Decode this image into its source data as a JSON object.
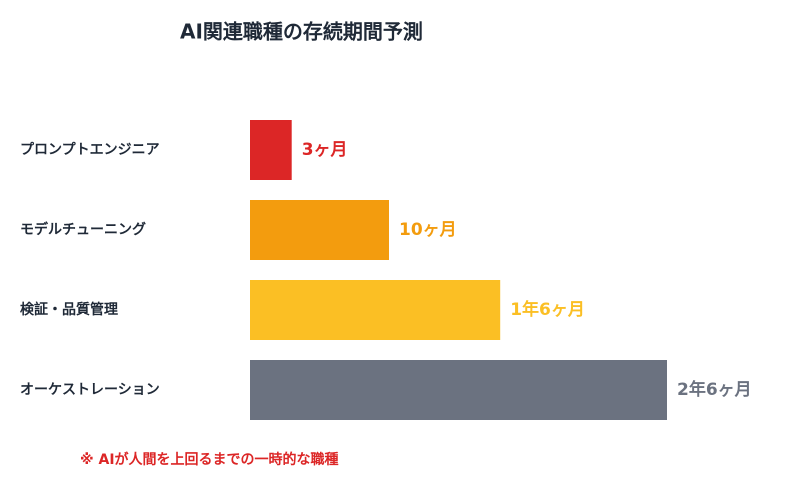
{
  "chart_data": {
    "type": "bar",
    "title": "AI関連職種の存続期間予測",
    "categories": [
      "プロンプトエンジニア",
      "モデルチューニング",
      "検証・品質管理",
      "オーケストレーション"
    ],
    "values": [
      3,
      10,
      18,
      30
    ],
    "value_labels": [
      "3ヶ月",
      "10ヶ月",
      "1年6ヶ月",
      "2年6ヶ月"
    ],
    "colors": [
      "#dc2626",
      "#f39c0e",
      "#fbbf24",
      "#6b7280"
    ],
    "note": "※ AIが人間を上回るまでの一時的な職種"
  }
}
